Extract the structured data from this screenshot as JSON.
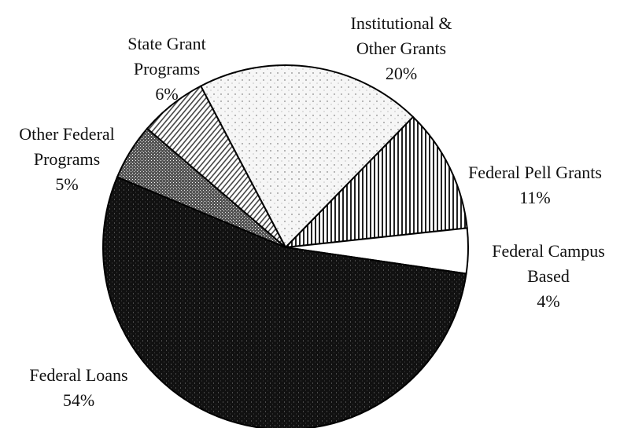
{
  "chart_data": {
    "type": "pie",
    "categories": [
      "Institutional & Other Grants",
      "Federal Pell Grants",
      "Federal Campus Based",
      "Federal Loans",
      "Other Federal Programs",
      "State Grant Programs"
    ],
    "values": [
      20,
      11,
      4,
      54,
      5,
      6
    ],
    "value_labels": [
      "20%",
      "11%",
      "4%",
      "54%",
      "5%",
      "6%"
    ]
  }
}
